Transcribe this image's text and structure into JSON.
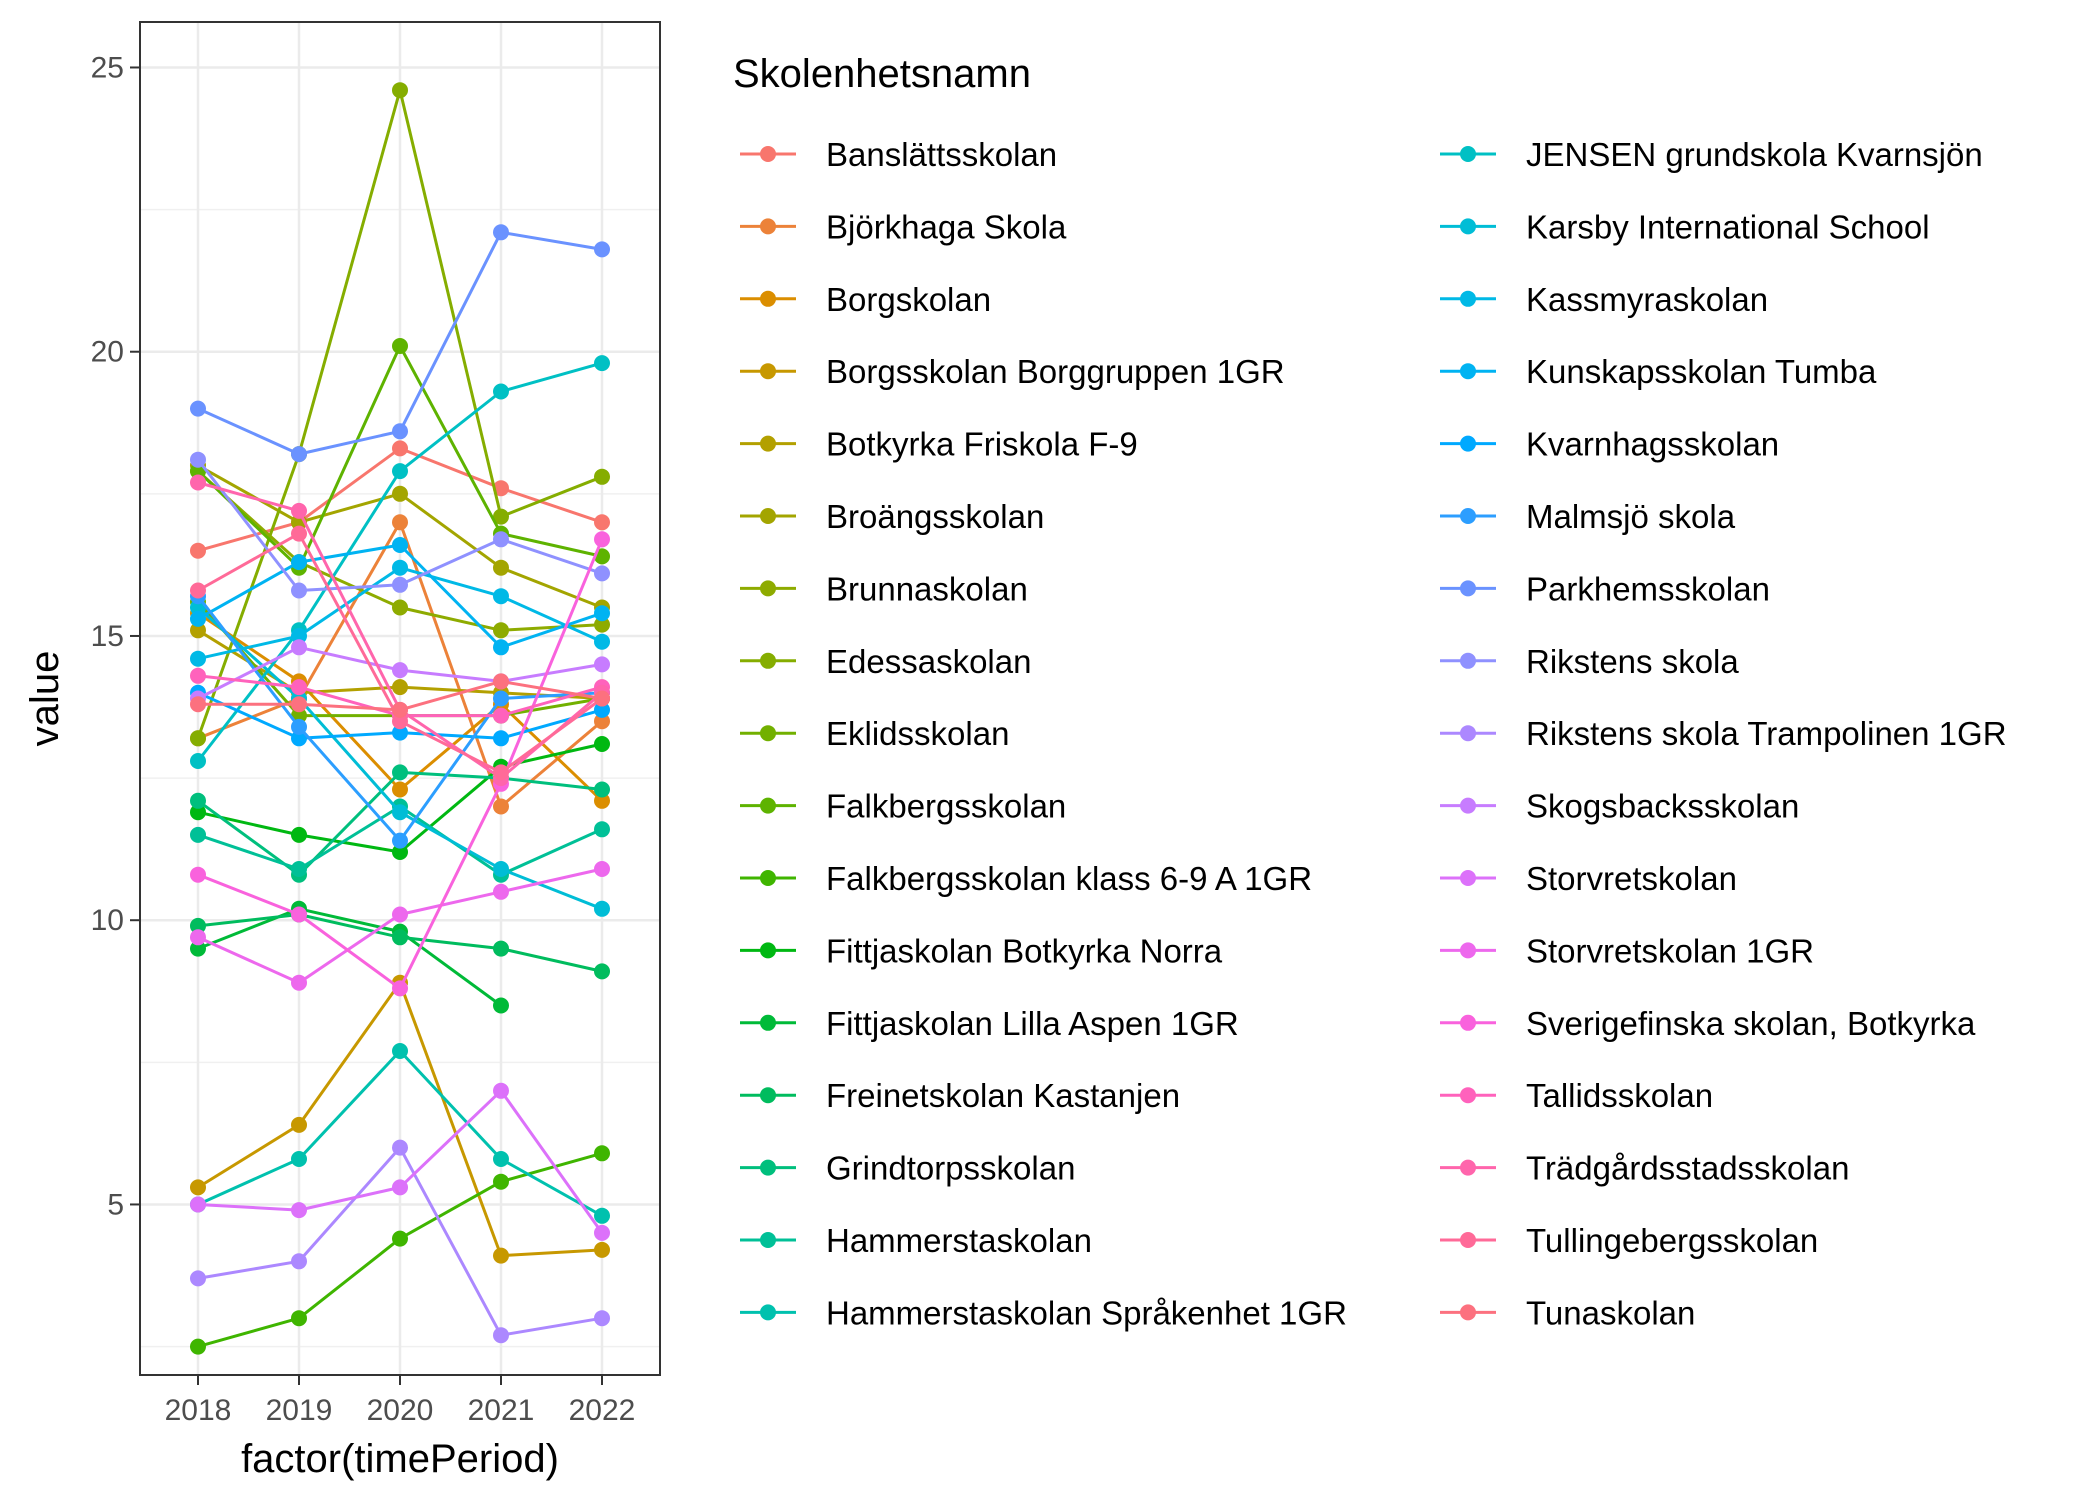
{
  "chart_data": {
    "type": "line",
    "xlabel": "factor(timePeriod)",
    "ylabel": "value",
    "categories": [
      "2018",
      "2019",
      "2020",
      "2021",
      "2022"
    ],
    "ylim": [
      2,
      25.8
    ],
    "y_ticks": [
      5,
      10,
      15,
      20,
      25
    ],
    "grid": true,
    "legend": {
      "title": "Skolenhetsnamn",
      "placement": "right",
      "columns": 2
    },
    "series": [
      {
        "name": "Banslättsskolan",
        "color": "#F8766D",
        "values": [
          16.5,
          17.0,
          18.3,
          17.6,
          17.0
        ]
      },
      {
        "name": "Björkhaga Skola",
        "color": "#EC8239",
        "values": [
          13.2,
          13.9,
          17.0,
          12.0,
          13.5
        ]
      },
      {
        "name": "Borgskolan",
        "color": "#DB8E00",
        "values": [
          15.4,
          14.2,
          12.3,
          13.8,
          12.1
        ]
      },
      {
        "name": "Borgsskolan Borggruppen 1GR",
        "color": "#C79800",
        "values": [
          5.3,
          6.4,
          8.9,
          4.1,
          4.2
        ]
      },
      {
        "name": "Botkyrka Friskola F-9",
        "color": "#B3A000",
        "values": [
          15.1,
          14.0,
          14.1,
          14.0,
          13.9
        ]
      },
      {
        "name": "Broängsskolan",
        "color": "#A3A500",
        "values": [
          18.0,
          17.0,
          17.5,
          16.2,
          15.5
        ]
      },
      {
        "name": "Brunnaskolan",
        "color": "#8EAB00",
        "values": [
          17.9,
          16.3,
          15.5,
          15.1,
          15.2
        ]
      },
      {
        "name": "Edessaskolan",
        "color": "#85AD00",
        "values": [
          13.2,
          18.2,
          24.6,
          17.1,
          17.8
        ]
      },
      {
        "name": "Eklidsskolan",
        "color": "#72B000",
        "values": [
          15.6,
          13.6,
          13.6,
          13.6,
          13.9
        ]
      },
      {
        "name": "Falkbergsskolan",
        "color": "#5EB300",
        "values": [
          17.9,
          16.2,
          20.1,
          16.8,
          16.4
        ]
      },
      {
        "name": "Falkbergsskolan klass 6-9 A 1GR",
        "color": "#3FB500",
        "values": [
          2.5,
          3.0,
          4.4,
          5.4,
          5.9
        ]
      },
      {
        "name": "Fittjaskolan Botkyrka Norra",
        "color": "#00B812",
        "values": [
          11.9,
          11.5,
          11.2,
          12.7,
          13.1
        ]
      },
      {
        "name": "Fittjaskolan Lilla Aspen 1GR",
        "color": "#00BA38",
        "values": [
          9.5,
          10.2,
          9.8,
          8.5,
          null
        ]
      },
      {
        "name": "Freinetskolan Kastanjen",
        "color": "#00BC5E",
        "values": [
          9.9,
          10.1,
          9.7,
          9.5,
          9.1
        ]
      },
      {
        "name": "Grindtorpsskolan",
        "color": "#00BF7D",
        "values": [
          12.1,
          10.8,
          12.6,
          12.5,
          12.3
        ]
      },
      {
        "name": "Hammerstaskolan",
        "color": "#00C097",
        "values": [
          11.5,
          10.9,
          12.0,
          10.8,
          11.6
        ]
      },
      {
        "name": "Hammerstaskolan Språkenhet 1GR",
        "color": "#00C1AE",
        "values": [
          5.0,
          5.8,
          7.7,
          5.8,
          4.8
        ]
      },
      {
        "name": "JENSEN grundskola Kvarnsjön",
        "color": "#00C0C4",
        "values": [
          12.8,
          15.1,
          17.9,
          19.3,
          19.8
        ]
      },
      {
        "name": "Karsby International School",
        "color": "#00BDD6",
        "values": [
          15.5,
          13.9,
          11.9,
          10.9,
          10.2
        ]
      },
      {
        "name": "Kassmyraskolan",
        "color": "#00B9E6",
        "values": [
          14.6,
          15.0,
          16.2,
          15.7,
          14.9
        ]
      },
      {
        "name": "Kunskapsskolan Tumba",
        "color": "#00B3F2",
        "values": [
          15.3,
          16.3,
          16.6,
          14.8,
          15.4
        ]
      },
      {
        "name": "Kvarnhagsskolan",
        "color": "#00A9FF",
        "values": [
          14.0,
          13.2,
          13.3,
          13.2,
          13.7
        ]
      },
      {
        "name": "Malmsjö skola",
        "color": "#2C9EFF",
        "values": [
          15.7,
          13.4,
          11.4,
          13.9,
          14.0
        ]
      },
      {
        "name": "Parkhemsskolan",
        "color": "#6A92FF",
        "values": [
          19.0,
          18.2,
          18.6,
          22.1,
          21.8
        ]
      },
      {
        "name": "Rikstens skola",
        "color": "#8F91FF",
        "values": [
          18.1,
          15.8,
          15.9,
          16.7,
          16.1
        ]
      },
      {
        "name": "Rikstens skola Trampolinen 1GR",
        "color": "#AC88FF",
        "values": [
          3.7,
          4.0,
          6.0,
          2.7,
          3.0
        ]
      },
      {
        "name": "Skogsbacksskolan",
        "color": "#C77CFF",
        "values": [
          13.9,
          14.8,
          14.4,
          14.2,
          14.5
        ]
      },
      {
        "name": "Storvretskolan",
        "color": "#DC71FA",
        "values": [
          5.0,
          4.9,
          5.3,
          7.0,
          4.5
        ]
      },
      {
        "name": "Storvretskolan 1GR",
        "color": "#ED68ED",
        "values": [
          9.7,
          8.9,
          10.1,
          10.5,
          10.9
        ]
      },
      {
        "name": "Sverigefinska skolan, Botkyrka",
        "color": "#F962DD",
        "values": [
          10.8,
          10.1,
          8.8,
          12.4,
          16.7
        ]
      },
      {
        "name": "Tallidsskolan",
        "color": "#FF62BC",
        "values": [
          14.3,
          14.1,
          13.6,
          13.6,
          14.1
        ]
      },
      {
        "name": "Trädgårdsstadsskolan",
        "color": "#FF65AC",
        "values": [
          17.7,
          17.2,
          13.7,
          12.5,
          14.0
        ]
      },
      {
        "name": "Tullingebergsskolan",
        "color": "#FF6A98",
        "values": [
          15.8,
          16.8,
          13.5,
          12.6,
          13.9
        ]
      },
      {
        "name": "Tunaskolan",
        "color": "#FC717F",
        "values": [
          13.8,
          13.8,
          13.7,
          14.2,
          13.9
        ]
      }
    ]
  }
}
